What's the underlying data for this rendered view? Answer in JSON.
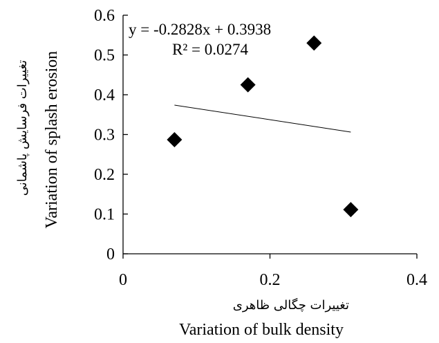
{
  "chart_data": {
    "type": "scatter",
    "title": "",
    "x_title_fa": "تغییرات چگالی ظاهری",
    "x_title_en": "Variation of bulk density",
    "y_title_fa": "تغییرات فرسایش پاشمانی",
    "y_title_en": "Variation of splash erosion",
    "xlim": [
      0,
      0.4
    ],
    "ylim": [
      0,
      0.6
    ],
    "x_ticks": [
      "0",
      "0.2",
      "0.4"
    ],
    "y_ticks": [
      "0",
      "0.1",
      "0.2",
      "0.3",
      "0.4",
      "0.5",
      "0.6"
    ],
    "grid": false,
    "legend": "none",
    "marker": "diamond",
    "marker_color": "#000000",
    "points": [
      {
        "x": 0.07,
        "y": 0.287
      },
      {
        "x": 0.17,
        "y": 0.425
      },
      {
        "x": 0.26,
        "y": 0.53
      },
      {
        "x": 0.31,
        "y": 0.111
      }
    ],
    "trendline": {
      "slope": -0.2828,
      "intercept": 0.3938,
      "x_range": [
        0.07,
        0.31
      ],
      "equation": "y = -0.2828x + 0.3938",
      "r_squared": "R² = 0.0274"
    }
  }
}
